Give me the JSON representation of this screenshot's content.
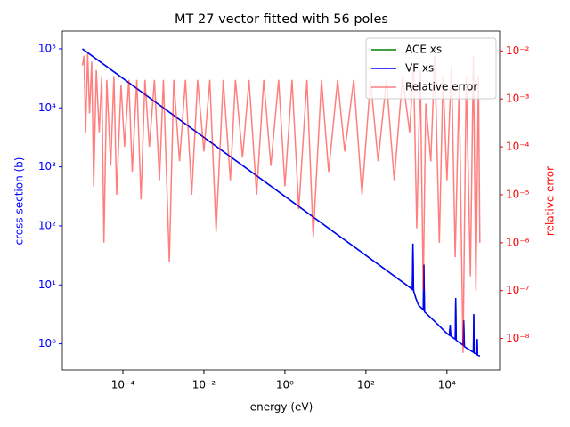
{
  "chart_data": {
    "type": "line",
    "title": "MT 27 vector fitted with 56 poles",
    "xlabel": "energy (eV)",
    "ylabel": "cross section (b)",
    "y2label": "relative error",
    "xscale": "log",
    "yscale": "log",
    "y2scale": "log",
    "xlim": [
      3.2e-06,
      200000.0
    ],
    "ylim": [
      0.36,
      200000.0
    ],
    "y2lim": [
      2.2e-09,
      0.026
    ],
    "xticks": [
      {
        "value": 0.0001,
        "label": "10⁻⁴"
      },
      {
        "value": 0.01,
        "label": "10⁻²"
      },
      {
        "value": 1,
        "label": "10⁰"
      },
      {
        "value": 100,
        "label": "10²"
      },
      {
        "value": 10000,
        "label": "10⁴"
      }
    ],
    "yticks": [
      {
        "value": 1,
        "label": "10⁰"
      },
      {
        "value": 10,
        "label": "10¹"
      },
      {
        "value": 100,
        "label": "10²"
      },
      {
        "value": 1000,
        "label": "10³"
      },
      {
        "value": 10000,
        "label": "10⁴"
      },
      {
        "value": 100000,
        "label": "10⁵"
      }
    ],
    "y2ticks": [
      {
        "value": 1e-08,
        "label": "10⁻⁸"
      },
      {
        "value": 1e-07,
        "label": "10⁻⁷"
      },
      {
        "value": 1e-06,
        "label": "10⁻⁶"
      },
      {
        "value": 1e-05,
        "label": "10⁻⁵"
      },
      {
        "value": 0.0001,
        "label": "10⁻⁴"
      },
      {
        "value": 0.001,
        "label": "10⁻³"
      },
      {
        "value": 0.01,
        "label": "10⁻²"
      }
    ],
    "legend": "upper right",
    "series": [
      {
        "name": "ACE xs",
        "color": "#008000",
        "axis": "y",
        "x": [
          1e-05,
          1,
          1000,
          1400,
          1450,
          1500,
          1700,
          2000,
          2600,
          2700,
          2800,
          5000,
          10000,
          11500,
          12000,
          12500,
          16000,
          16500,
          17000,
          25000,
          26000,
          27000,
          35000,
          45000,
          46000,
          47000,
          55000,
          56000,
          57000,
          65000
        ],
        "values": [
          100000,
          316,
          10,
          8.4,
          50,
          8,
          6,
          4.5,
          3.8,
          22,
          3.5,
          2.4,
          1.5,
          1.4,
          2.1,
          1.35,
          1.2,
          6,
          1.15,
          0.95,
          2.5,
          0.9,
          0.8,
          0.72,
          3.2,
          0.7,
          0.66,
          1.2,
          0.65,
          0.62
        ]
      },
      {
        "name": "VF xs",
        "color": "#0000ff",
        "axis": "y",
        "x": [
          1e-05,
          1,
          1000,
          1400,
          1450,
          1500,
          1700,
          2000,
          2600,
          2700,
          2800,
          5000,
          10000,
          11500,
          12000,
          12500,
          16000,
          16500,
          17000,
          25000,
          26000,
          27000,
          35000,
          45000,
          46000,
          47000,
          55000,
          56000,
          57000,
          65000
        ],
        "values": [
          100000,
          316,
          10,
          8.4,
          50,
          8,
          6,
          4.5,
          3.8,
          22,
          3.5,
          2.4,
          1.5,
          1.4,
          2.1,
          1.35,
          1.2,
          6,
          1.15,
          0.95,
          2.5,
          0.9,
          0.8,
          0.72,
          3.2,
          0.7,
          0.66,
          1.2,
          0.65,
          0.62
        ]
      },
      {
        "name": "Relative error",
        "color": "#ff0000",
        "axis": "y2",
        "x": [
          1e-05,
          1.1e-05,
          1.2e-05,
          1.35e-05,
          1.5e-05,
          1.7e-05,
          1.9e-05,
          2.2e-05,
          2.6e-05,
          3e-05,
          3.4e-05,
          4e-05,
          5e-05,
          6e-05,
          7e-05,
          9e-05,
          0.00011,
          0.00014,
          0.00017,
          0.00022,
          0.00028,
          0.00035,
          0.00045,
          0.0006,
          0.0008,
          0.001,
          0.0014,
          0.0018,
          0.0025,
          0.0035,
          0.005,
          0.007,
          0.01,
          0.014,
          0.02,
          0.03,
          0.045,
          0.06,
          0.09,
          0.13,
          0.2,
          0.3,
          0.45,
          0.7,
          1,
          1.5,
          2.2,
          3.5,
          5,
          8,
          12,
          20,
          30,
          50,
          80,
          130,
          200,
          320,
          500,
          800,
          1200,
          1500,
          1800,
          2200,
          2600,
          3000,
          4000,
          5000,
          6500,
          8000,
          10000,
          13000,
          16000,
          20000,
          25000,
          30000,
          38000,
          45000,
          52000,
          60000,
          65000
        ],
        "values": [
          0.005,
          0.008,
          0.0002,
          0.009,
          0.0005,
          0.006,
          1.5e-05,
          0.004,
          0.0002,
          0.003,
          1e-06,
          0.0025,
          4e-05,
          0.003,
          1e-05,
          0.002,
          0.0001,
          0.0025,
          3e-05,
          0.0025,
          8e-06,
          0.0025,
          0.0001,
          0.0025,
          2e-05,
          0.0025,
          4e-07,
          0.0025,
          5e-05,
          0.0025,
          1e-05,
          0.0025,
          8e-05,
          0.0025,
          1.7e-06,
          0.0025,
          2e-05,
          0.0025,
          6e-05,
          0.0025,
          1e-05,
          0.0025,
          4e-05,
          0.0025,
          1.5e-05,
          0.0025,
          5e-06,
          0.0025,
          1.3e-06,
          0.0025,
          3e-05,
          0.0025,
          8e-05,
          0.0025,
          1e-05,
          0.0025,
          5e-05,
          0.0025,
          2e-05,
          0.003,
          0.0002,
          0.005,
          2e-06,
          0.004,
          1e-07,
          0.0008,
          5e-05,
          0.008,
          1e-06,
          0.003,
          2e-05,
          0.005,
          5e-07,
          0.002,
          5e-09,
          0.003,
          2e-07,
          0.008,
          1e-07,
          0.003,
          1e-06
        ]
      }
    ]
  }
}
